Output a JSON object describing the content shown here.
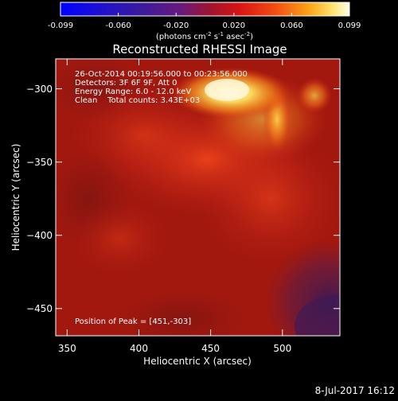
{
  "colorbar": {
    "ticks": [
      "-0.099",
      "-0.060",
      "-0.020",
      "0.020",
      "0.060",
      "0.099"
    ],
    "units_main": "(photons cm",
    "units_sup1": "-2",
    "units_mid1": " s",
    "units_sup2": "-1",
    "units_mid2": " asec",
    "units_sup3": "-2",
    "units_end": ")"
  },
  "plot": {
    "title": "Reconstructed RHESSI Image",
    "xlabel": "Heliocentric X (arcsec)",
    "ylabel": "Heliocentric Y (arcsec)",
    "x_ticks": [
      "350",
      "400",
      "450",
      "500"
    ],
    "y_ticks": [
      "−300",
      "−350",
      "−400",
      "−450"
    ],
    "xlim": [
      342,
      540
    ],
    "ylim": [
      -472,
      -283
    ],
    "annotations": {
      "time": "26-Oct-2014 00:19:56.000 to 00:23:56.000",
      "detectors": "Detectors: 3F 6F 9F, Att 0",
      "energy": "Energy Range: 6.0 - 12.0 keV",
      "clean": "Clean    Total counts: 3.43E+03",
      "peak": "Position of Peak = [451,-303]"
    }
  },
  "footer": {
    "date": "8-Jul-2017 16:12"
  },
  "colors": {
    "background": "#000000",
    "text": "#ffffff",
    "map_base": "#a3180e",
    "peak_core": "#fff6d0",
    "corner_dark": "#4a1c56"
  }
}
